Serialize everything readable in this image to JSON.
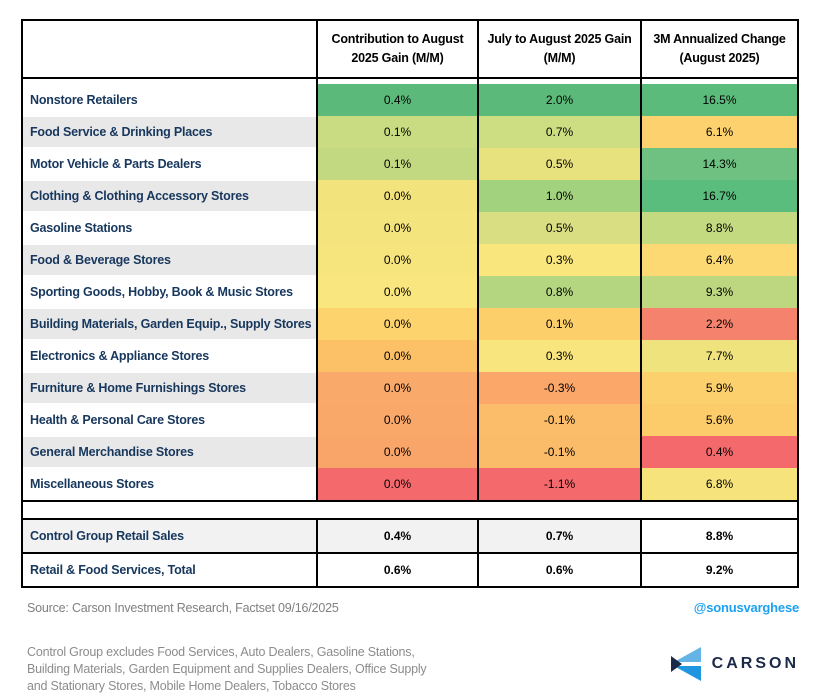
{
  "chart_data": {
    "type": "heatmap",
    "title": "",
    "columns": [
      {
        "line1": "Contribution to August",
        "line2": "2025 Gain (M/M)"
      },
      {
        "line1": "July to August 2025 Gain",
        "line2": "(M/M)"
      },
      {
        "line1": "3M Annualized Change",
        "line2": "(August 2025)"
      }
    ],
    "unit": "%",
    "rows": [
      {
        "label": "Nonstore Retailers",
        "values": [
          0.4,
          2.0,
          16.5
        ],
        "colors": [
          "#5bba7a",
          "#5bba7a",
          "#5bbb7b"
        ]
      },
      {
        "label": "Food Service & Drinking Places",
        "values": [
          0.1,
          0.7,
          6.1
        ],
        "colors": [
          "#cadc81",
          "#cddd82",
          "#fdd26e"
        ]
      },
      {
        "label": "Motor Vehicle & Parts Dealers",
        "values": [
          0.1,
          0.5,
          14.3
        ],
        "colors": [
          "#c3d981",
          "#e7e17e",
          "#6ec180"
        ]
      },
      {
        "label": "Clothing & Clothing Accessory Stores",
        "values": [
          0.0,
          1.0,
          16.7
        ],
        "colors": [
          "#f2e37c",
          "#a3d27f",
          "#5abc7d"
        ]
      },
      {
        "label": "Gasoline Stations",
        "values": [
          0.0,
          0.5,
          8.8
        ],
        "colors": [
          "#f4e47d",
          "#d8de81",
          "#c3da80"
        ]
      },
      {
        "label": "Food & Beverage Stores",
        "values": [
          0.0,
          0.3,
          6.4
        ],
        "colors": [
          "#f6e57d",
          "#f9e67d",
          "#fdd973"
        ]
      },
      {
        "label": "Sporting Goods, Hobby, Book & Music Stores",
        "values": [
          0.0,
          0.8,
          9.3
        ],
        "colors": [
          "#fae67e",
          "#b5d680",
          "#bcd780"
        ]
      },
      {
        "label": "Building Materials, Garden Equip., Supply Stores",
        "values": [
          0.0,
          0.1,
          2.2
        ],
        "colors": [
          "#fcd36c",
          "#fccf6b",
          "#f5826c"
        ]
      },
      {
        "label": "Electronics & Appliance Stores",
        "values": [
          0.0,
          0.3,
          7.7
        ],
        "colors": [
          "#fcc166",
          "#f8e57d",
          "#eee37d"
        ]
      },
      {
        "label": "Furniture & Home Furnishings Stores",
        "values": [
          0.0,
          -0.3,
          5.9
        ],
        "colors": [
          "#f9a96a",
          "#fba76a",
          "#fcd06c"
        ]
      },
      {
        "label": "Health & Personal Care Stores",
        "values": [
          0.0,
          -0.1,
          5.6
        ],
        "colors": [
          "#f9a86a",
          "#fbbd69",
          "#fccb6a"
        ]
      },
      {
        "label": "General Merchandise Stores",
        "values": [
          0.0,
          -0.1,
          0.4
        ],
        "colors": [
          "#f9a569",
          "#fbbc69",
          "#f4696c"
        ]
      },
      {
        "label": "Miscellaneous Stores",
        "values": [
          0.0,
          -1.1,
          6.8
        ],
        "colors": [
          "#f4696c",
          "#f4696c",
          "#f7e37c"
        ]
      }
    ],
    "summary_rows": [
      {
        "label": "Control Group Retail Sales",
        "values": [
          0.4,
          0.7,
          8.8
        ],
        "colors": [
          "#f2f2f2",
          "#f2f2f2",
          "#ffffff"
        ],
        "label_bg": "#f2f2f2"
      },
      {
        "label": "Retail & Food Services, Total",
        "values": [
          0.6,
          0.6,
          9.2
        ],
        "colors": [
          "#ffffff",
          "#ffffff",
          "#ffffff"
        ],
        "label_bg": "#ffffff"
      }
    ]
  },
  "footer": {
    "source": "Source: Carson Investment Research, Factset   09/16/2025",
    "handle": "@sonusvarghese",
    "note_lines": [
      "Control Group excludes Food Services, Auto Dealers, Gasoline Stations,",
      "Building Materials, Garden Equipment and Supplies Dealers, Office Supply",
      "and Stationary Stores, Mobile Home Dealers, Tobacco Stores"
    ],
    "logo_text": "CARSON"
  },
  "theme": {
    "label_navy": "#17375d",
    "handle_blue": "#1da1f2",
    "logo_navy": "#1b2a49",
    "logo_light_blue": "#64b5e6",
    "logo_mid_blue": "#2196e0",
    "row_alt_gray": "#e8e8e8"
  }
}
